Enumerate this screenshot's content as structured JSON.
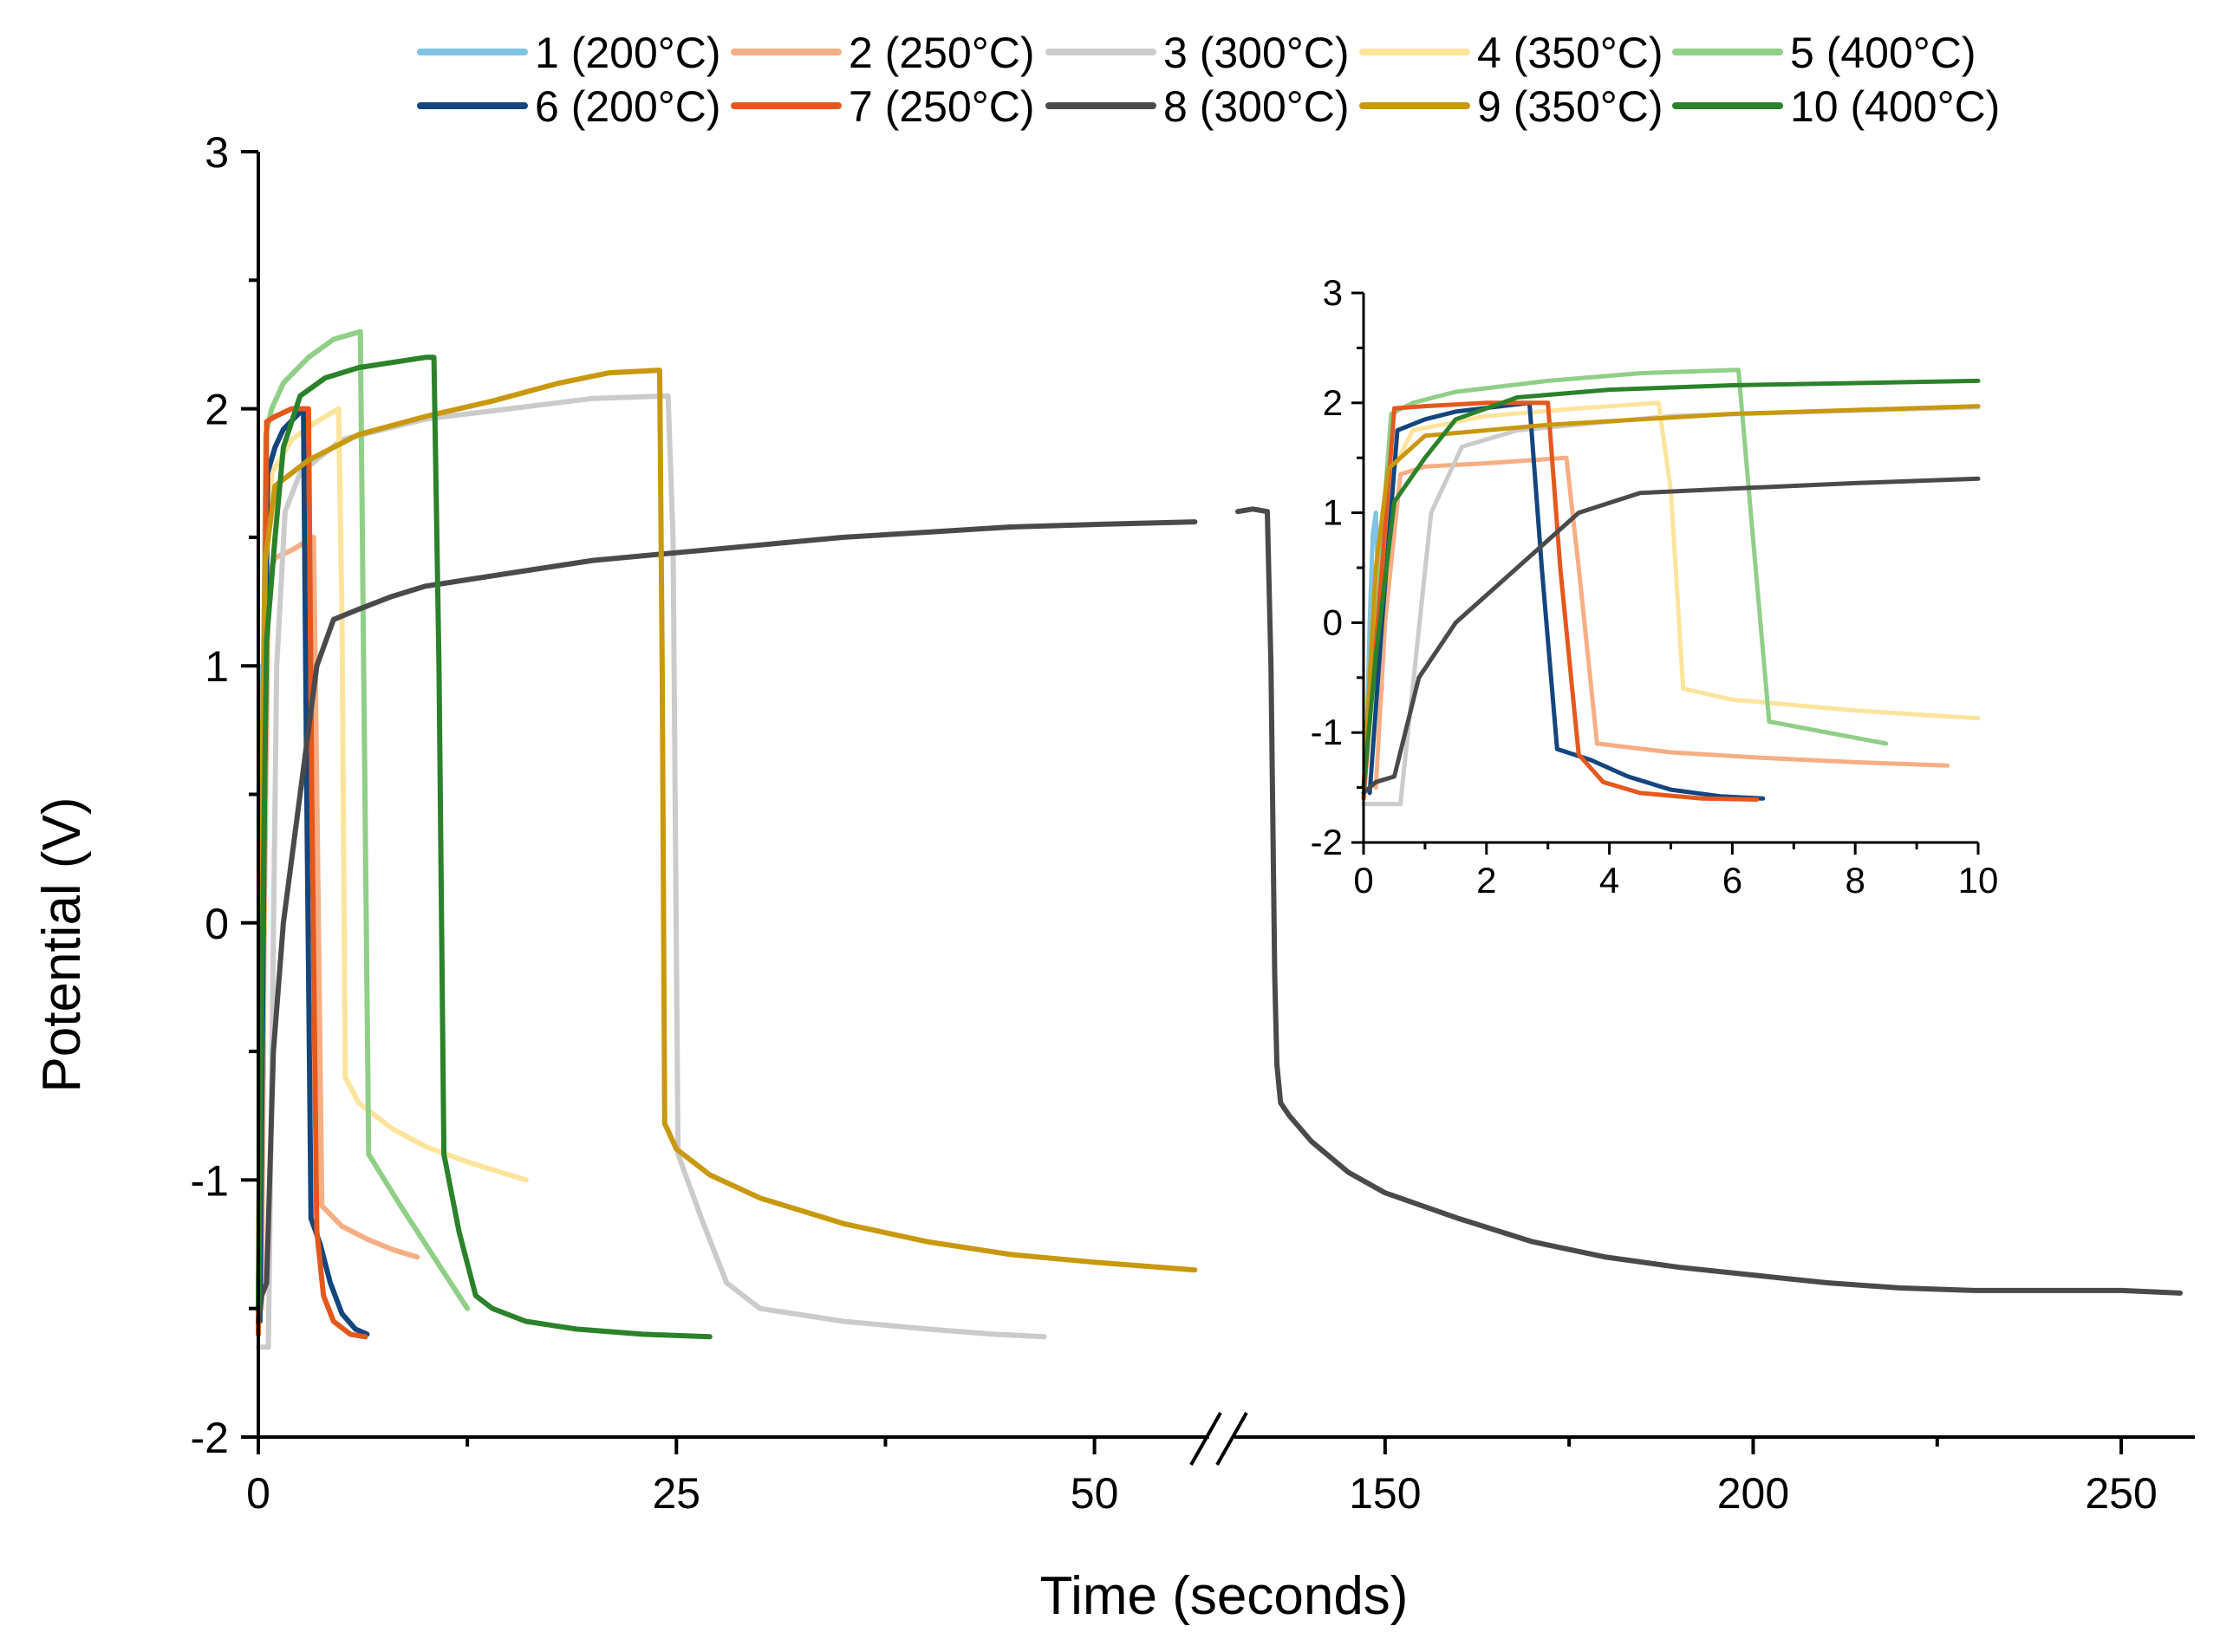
{
  "chart_data": {
    "type": "line",
    "title": "",
    "ylabel": "Potential (V)",
    "xlabel": "Time (seconds)",
    "axis_break": "between 60 and 130 seconds",
    "x_segments": [
      {
        "xlim": [
          0,
          56.5
        ],
        "ticks": [
          0,
          25,
          50
        ]
      },
      {
        "xlim": [
          130,
          260
        ],
        "ticks": [
          150,
          200,
          250
        ]
      }
    ],
    "ylim": [
      -2,
      3
    ],
    "yticks": [
      -2,
      -1,
      0,
      1,
      2,
      3
    ],
    "legend_position": "top",
    "series": [
      {
        "name": "1 (200°C)",
        "color": "#7fc4e2",
        "points": [
          [
            0,
            -1.6
          ],
          [
            0.05,
            -1.1
          ],
          [
            0.1,
            0.0
          ],
          [
            0.15,
            0.8
          ],
          [
            0.2,
            1.0
          ],
          [
            0.25,
            0.1
          ],
          [
            0.3,
            -0.6
          ]
        ]
      },
      {
        "name": "2 (250°C)",
        "color": "#f6ae84",
        "points": [
          [
            0.2,
            -1.5
          ],
          [
            0.35,
            0.0
          ],
          [
            0.6,
            1.35
          ],
          [
            1.0,
            1.42
          ],
          [
            2.0,
            1.45
          ],
          [
            3.3,
            1.5
          ],
          [
            3.5,
            0.5
          ],
          [
            3.8,
            -1.1
          ],
          [
            5.0,
            -1.18
          ],
          [
            6.5,
            -1.23
          ],
          [
            8.0,
            -1.27
          ],
          [
            9.5,
            -1.3
          ]
        ]
      },
      {
        "name": "3 (300°C)",
        "color": "#cbcbcb",
        "points": [
          [
            0,
            -1.65
          ],
          [
            0.6,
            -1.65
          ],
          [
            1.1,
            1.0
          ],
          [
            1.6,
            1.6
          ],
          [
            2.5,
            1.75
          ],
          [
            5,
            1.88
          ],
          [
            10,
            1.96
          ],
          [
            15,
            2.0
          ],
          [
            20,
            2.04
          ],
          [
            24.5,
            2.05
          ],
          [
            24.8,
            1.5
          ],
          [
            25.1,
            -0.9
          ],
          [
            26.5,
            -1.15
          ],
          [
            28,
            -1.4
          ],
          [
            30,
            -1.5
          ],
          [
            35,
            -1.55
          ],
          [
            40,
            -1.58
          ],
          [
            44,
            -1.6
          ],
          [
            47,
            -1.61
          ]
        ]
      },
      {
        "name": "4 (350°C)",
        "color": "#fde49c",
        "points": [
          [
            0.05,
            -1.3
          ],
          [
            0.2,
            0.2
          ],
          [
            0.4,
            1.3
          ],
          [
            0.8,
            1.75
          ],
          [
            2.0,
            1.88
          ],
          [
            3.5,
            1.95
          ],
          [
            4.8,
            2.0
          ],
          [
            5.0,
            1.2
          ],
          [
            5.2,
            -0.6
          ],
          [
            6.0,
            -0.7
          ],
          [
            8.0,
            -0.8
          ],
          [
            10,
            -0.87
          ],
          [
            12.5,
            -0.93
          ],
          [
            16.0,
            -1.0
          ]
        ]
      },
      {
        "name": "5 (400°C)",
        "color": "#90cf87",
        "points": [
          [
            0,
            -1.6
          ],
          [
            0.1,
            -0.5
          ],
          [
            0.3,
            0.8
          ],
          [
            0.45,
            1.9
          ],
          [
            0.8,
            2.0
          ],
          [
            1.5,
            2.1
          ],
          [
            3,
            2.2
          ],
          [
            4.5,
            2.27
          ],
          [
            6.1,
            2.3
          ],
          [
            6.3,
            1.0
          ],
          [
            6.6,
            -0.9
          ],
          [
            8.5,
            -1.1
          ],
          [
            10.5,
            -1.3
          ],
          [
            12.5,
            -1.5
          ]
        ]
      },
      {
        "name": "6 (200°C)",
        "color": "#14467e",
        "points": [
          [
            0.1,
            -1.55
          ],
          [
            0.3,
            0.0
          ],
          [
            0.55,
            1.75
          ],
          [
            1.0,
            1.85
          ],
          [
            1.5,
            1.92
          ],
          [
            2.7,
            2.0
          ],
          [
            2.9,
            0.5
          ],
          [
            3.15,
            -1.15
          ],
          [
            3.7,
            -1.25
          ],
          [
            4.3,
            -1.4
          ],
          [
            5.0,
            -1.52
          ],
          [
            5.8,
            -1.58
          ],
          [
            6.5,
            -1.6
          ]
        ]
      },
      {
        "name": "7 (250°C)",
        "color": "#e4581e",
        "points": [
          [
            0,
            -1.6
          ],
          [
            0.3,
            0.5
          ],
          [
            0.5,
            1.95
          ],
          [
            1.0,
            1.97
          ],
          [
            2.0,
            2.0
          ],
          [
            3.0,
            2.0
          ],
          [
            3.2,
            0.5
          ],
          [
            3.5,
            -1.2
          ],
          [
            3.9,
            -1.45
          ],
          [
            4.5,
            -1.55
          ],
          [
            5.5,
            -1.6
          ],
          [
            6.4,
            -1.61
          ]
        ]
      },
      {
        "name": "8 (300°C)",
        "color": "#4a4a4c",
        "points": [
          [
            0,
            -1.55
          ],
          [
            0.2,
            -1.45
          ],
          [
            0.5,
            -1.4
          ],
          [
            0.9,
            -0.5
          ],
          [
            1.5,
            0.0
          ],
          [
            2.5,
            0.5
          ],
          [
            3.5,
            1.0
          ],
          [
            4.5,
            1.18
          ],
          [
            6,
            1.22
          ],
          [
            8,
            1.27
          ],
          [
            10,
            1.31
          ],
          [
            15,
            1.36
          ],
          [
            20,
            1.41
          ],
          [
            25,
            1.44
          ],
          [
            30,
            1.47
          ],
          [
            35,
            1.5
          ],
          [
            40,
            1.52
          ],
          [
            45,
            1.54
          ],
          [
            50,
            1.55
          ],
          [
            56,
            1.56
          ],
          [
            130,
            1.6
          ],
          [
            132,
            1.61
          ],
          [
            134,
            1.6
          ],
          [
            134.5,
            1.0
          ],
          [
            135,
            -0.2
          ],
          [
            135.3,
            -0.55
          ],
          [
            135.8,
            -0.7
          ],
          [
            137,
            -0.75
          ],
          [
            140,
            -0.85
          ],
          [
            145,
            -0.97
          ],
          [
            150,
            -1.05
          ],
          [
            160,
            -1.15
          ],
          [
            170,
            -1.24
          ],
          [
            180,
            -1.3
          ],
          [
            190,
            -1.34
          ],
          [
            200,
            -1.37
          ],
          [
            210,
            -1.4
          ],
          [
            220,
            -1.42
          ],
          [
            230,
            -1.43
          ],
          [
            240,
            -1.43
          ],
          [
            250,
            -1.43
          ],
          [
            258,
            -1.44
          ]
        ]
      },
      {
        "name": "9 (350°C)",
        "color": "#c8980e",
        "points": [
          [
            0,
            -1.5
          ],
          [
            0.2,
            0.5
          ],
          [
            0.4,
            1.4
          ],
          [
            1.0,
            1.7
          ],
          [
            3,
            1.8
          ],
          [
            6,
            1.9
          ],
          [
            10,
            1.97
          ],
          [
            14,
            2.03
          ],
          [
            18,
            2.1
          ],
          [
            21,
            2.14
          ],
          [
            24,
            2.15
          ],
          [
            24.15,
            1.0
          ],
          [
            24.3,
            -0.78
          ],
          [
            25,
            -0.88
          ],
          [
            27,
            -0.98
          ],
          [
            30,
            -1.07
          ],
          [
            35,
            -1.17
          ],
          [
            40,
            -1.24
          ],
          [
            45,
            -1.29
          ],
          [
            50,
            -1.32
          ],
          [
            56,
            -1.35
          ]
        ]
      },
      {
        "name": "10 (400°C)",
        "color": "#2b822a",
        "points": [
          [
            0,
            -1.5
          ],
          [
            0.2,
            -0.3
          ],
          [
            0.5,
            1.1
          ],
          [
            1.0,
            1.5
          ],
          [
            1.5,
            1.85
          ],
          [
            2.5,
            2.05
          ],
          [
            4,
            2.12
          ],
          [
            6,
            2.16
          ],
          [
            8,
            2.18
          ],
          [
            10,
            2.2
          ],
          [
            10.5,
            2.2
          ],
          [
            10.8,
            1.0
          ],
          [
            11.1,
            -0.9
          ],
          [
            12,
            -1.2
          ],
          [
            13,
            -1.45
          ],
          [
            14,
            -1.5
          ],
          [
            16,
            -1.55
          ],
          [
            19,
            -1.58
          ],
          [
            23,
            -1.6
          ],
          [
            27,
            -1.61
          ]
        ]
      }
    ],
    "inset": {
      "xlim": [
        0,
        10
      ],
      "ylim": [
        -2,
        3
      ],
      "xticks": [
        0,
        2,
        4,
        6,
        8,
        10
      ],
      "yticks": [
        -2,
        -1,
        0,
        1,
        2,
        3
      ]
    }
  }
}
